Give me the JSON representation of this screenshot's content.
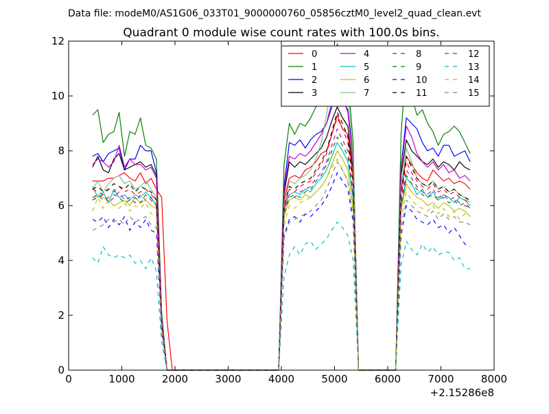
{
  "chart_data": {
    "type": "line",
    "suptitle": "Data file: modeM0/AS1G06_033T01_9000000760_05856cztM0_level2_quad_clean.evt",
    "title": "Quadrant 0 module wise count rates with 100.0s bins.",
    "xlabel": "",
    "ylabel": "",
    "x_offset_label": "+2.15286e8",
    "xlim": [
      0,
      8000
    ],
    "ylim": [
      0,
      12
    ],
    "xticks": [
      "0",
      "1000",
      "2000",
      "3000",
      "4000",
      "5000",
      "6000",
      "7000",
      "8000"
    ],
    "yticks": [
      "0",
      "2",
      "4",
      "6",
      "8",
      "10",
      "12"
    ],
    "legend_position": "top-right",
    "x": [
      450,
      550,
      650,
      750,
      850,
      950,
      1050,
      1150,
      1250,
      1350,
      1450,
      1550,
      1650,
      1750,
      1850,
      1950,
      2050,
      2150,
      2250,
      2350,
      2450,
      2550,
      2650,
      2750,
      2850,
      2950,
      3050,
      3150,
      3250,
      3350,
      3450,
      3550,
      3650,
      3750,
      3850,
      3950,
      4050,
      4150,
      4250,
      4350,
      4450,
      4550,
      4650,
      4750,
      4850,
      4950,
      5050,
      5150,
      5250,
      5350,
      5450,
      5550,
      5650,
      5750,
      5850,
      5950,
      6050,
      6150,
      6250,
      6350,
      6450,
      6550,
      6650,
      6750,
      6850,
      6950,
      7050,
      7150,
      7250,
      7350,
      7450,
      7550
    ],
    "series": [
      {
        "name": "0",
        "color": "#ff0000",
        "dash": "solid",
        "values": [
          6.9,
          6.9,
          6.9,
          7.0,
          7.0,
          7.1,
          7.2,
          7.0,
          6.9,
          7.2,
          6.8,
          7.0,
          6.6,
          6.3,
          1.8,
          0,
          0,
          0,
          0,
          0,
          0,
          0,
          0,
          0,
          0,
          0,
          0,
          0,
          0,
          0,
          0,
          0,
          0,
          0,
          0,
          0,
          6.2,
          7.0,
          7.1,
          7.0,
          7.3,
          7.4,
          7.6,
          7.9,
          8.0,
          8.6,
          9.3,
          8.8,
          8.6,
          7.0,
          0,
          0,
          0,
          0,
          0,
          0,
          0,
          0,
          6.5,
          7.8,
          7.5,
          7.2,
          7.0,
          6.9,
          7.3,
          7.1,
          6.9,
          7.0,
          6.8,
          6.9,
          6.8,
          6.6
        ]
      },
      {
        "name": "1",
        "color": "#008000",
        "dash": "solid",
        "values": [
          9.3,
          9.5,
          8.3,
          8.6,
          8.7,
          9.4,
          7.8,
          8.7,
          8.6,
          9.2,
          8.2,
          8.1,
          7.7,
          2.1,
          0,
          0,
          0,
          0,
          0,
          0,
          0,
          0,
          0,
          0,
          0,
          0,
          0,
          0,
          0,
          0,
          0,
          0,
          0,
          0,
          0,
          0,
          7.5,
          9.0,
          8.6,
          9.0,
          8.9,
          9.2,
          9.6,
          9.8,
          10.2,
          11.0,
          11.9,
          11.3,
          10.7,
          8.3,
          0,
          0,
          0,
          0,
          0,
          0,
          0,
          0,
          8.6,
          11.2,
          10.0,
          9.3,
          9.5,
          9.0,
          8.7,
          8.2,
          8.6,
          8.7,
          8.9,
          8.7,
          8.3,
          7.9
        ]
      },
      {
        "name": "2",
        "color": "#0000ff",
        "dash": "solid",
        "values": [
          7.8,
          7.9,
          7.6,
          7.9,
          8.0,
          8.1,
          7.3,
          7.7,
          7.7,
          8.2,
          8.0,
          8.0,
          7.2,
          1.9,
          0,
          0,
          0,
          0,
          0,
          0,
          0,
          0,
          0,
          0,
          0,
          0,
          0,
          0,
          0,
          0,
          0,
          0,
          0,
          0,
          0,
          0,
          6.7,
          8.3,
          8.2,
          8.4,
          8.1,
          8.4,
          8.6,
          8.7,
          9.0,
          9.6,
          10.1,
          9.8,
          9.5,
          7.8,
          0,
          0,
          0,
          0,
          0,
          0,
          0,
          0,
          7.4,
          9.2,
          9.0,
          8.8,
          8.3,
          8.0,
          8.1,
          7.8,
          8.2,
          8.2,
          7.8,
          7.9,
          8.0,
          7.6
        ]
      },
      {
        "name": "3",
        "color": "#000000",
        "dash": "solid",
        "values": [
          7.4,
          7.8,
          7.3,
          7.2,
          7.7,
          7.9,
          7.3,
          7.4,
          7.5,
          7.6,
          7.4,
          7.5,
          7.1,
          1.9,
          0,
          0,
          0,
          0,
          0,
          0,
          0,
          0,
          0,
          0,
          0,
          0,
          0,
          0,
          0,
          0,
          0,
          0,
          0,
          0,
          0,
          0,
          6.4,
          7.6,
          7.4,
          7.6,
          7.5,
          7.7,
          7.9,
          8.1,
          8.5,
          9.1,
          9.6,
          9.2,
          8.9,
          7.3,
          0,
          0,
          0,
          0,
          0,
          0,
          0,
          0,
          7.1,
          8.4,
          8.0,
          7.8,
          7.6,
          7.5,
          7.7,
          7.4,
          7.6,
          7.5,
          7.3,
          7.6,
          7.4,
          7.3
        ]
      },
      {
        "name": "4",
        "color": "#bf00bf",
        "dash": "solid",
        "values": [
          7.5,
          7.7,
          7.6,
          7.4,
          7.6,
          8.2,
          7.4,
          7.7,
          7.5,
          7.5,
          7.3,
          7.4,
          7.0,
          1.9,
          0,
          0,
          0,
          0,
          0,
          0,
          0,
          0,
          0,
          0,
          0,
          0,
          0,
          0,
          0,
          0,
          0,
          0,
          0,
          0,
          0,
          0,
          6.6,
          7.8,
          7.7,
          7.9,
          7.8,
          8.0,
          8.3,
          8.6,
          9.0,
          9.8,
          10.5,
          10.0,
          9.4,
          7.6,
          0,
          0,
          0,
          0,
          0,
          0,
          0,
          0,
          7.3,
          8.9,
          8.5,
          7.9,
          7.6,
          7.4,
          7.6,
          7.3,
          7.5,
          7.2,
          7.3,
          7.0,
          7.1,
          6.9
        ]
      },
      {
        "name": "5",
        "color": "#00bfbf",
        "dash": "solid",
        "values": [
          6.7,
          6.3,
          6.5,
          6.1,
          6.6,
          6.3,
          6.4,
          6.2,
          6.4,
          6.3,
          6.5,
          6.3,
          6.0,
          1.7,
          0,
          0,
          0,
          0,
          0,
          0,
          0,
          0,
          0,
          0,
          0,
          0,
          0,
          0,
          0,
          0,
          0,
          0,
          0,
          0,
          0,
          0,
          5.8,
          6.4,
          6.5,
          6.4,
          6.6,
          6.5,
          6.8,
          7.0,
          7.3,
          7.8,
          8.3,
          8.0,
          7.6,
          6.3,
          0,
          0,
          0,
          0,
          0,
          0,
          0,
          0,
          5.9,
          7.0,
          6.8,
          6.4,
          6.6,
          6.3,
          6.5,
          6.2,
          6.4,
          6.3,
          6.1,
          6.3,
          6.2,
          6.0
        ]
      },
      {
        "name": "6",
        "color": "#bfbf00",
        "dash": "solid",
        "values": [
          6.2,
          6.4,
          6.3,
          6.2,
          6.0,
          6.1,
          6.2,
          6.0,
          6.3,
          6.1,
          6.2,
          6.0,
          5.9,
          1.6,
          0,
          0,
          0,
          0,
          0,
          0,
          0,
          0,
          0,
          0,
          0,
          0,
          0,
          0,
          0,
          0,
          0,
          0,
          0,
          0,
          0,
          0,
          5.6,
          6.2,
          6.3,
          6.2,
          6.4,
          6.3,
          6.5,
          6.7,
          7.0,
          7.5,
          8.0,
          7.7,
          7.3,
          6.0,
          0,
          0,
          0,
          0,
          0,
          0,
          0,
          0,
          5.8,
          6.8,
          6.5,
          6.3,
          6.2,
          6.0,
          6.1,
          5.9,
          6.1,
          6.0,
          5.8,
          5.9,
          5.8,
          5.6
        ]
      },
      {
        "name": "7",
        "color": "#7fbf7f",
        "dash": "solid",
        "values": [
          6.6,
          6.9,
          6.5,
          6.8,
          7.0,
          7.1,
          6.8,
          6.9,
          6.6,
          6.7,
          6.9,
          6.6,
          6.3,
          1.8,
          0,
          0,
          0,
          0,
          0,
          0,
          0,
          0,
          0,
          0,
          0,
          0,
          0,
          0,
          0,
          0,
          0,
          0,
          0,
          0,
          0,
          0,
          6.0,
          6.9,
          6.8,
          7.0,
          7.1,
          7.3,
          7.7,
          8.3,
          9.3,
          10.6,
          11.8,
          11.0,
          10.2,
          7.8,
          0,
          0,
          0,
          0,
          0,
          0,
          0,
          0,
          6.7,
          8.1,
          7.6,
          7.0,
          6.8,
          6.7,
          6.9,
          6.6,
          6.7,
          6.5,
          6.6,
          6.4,
          6.3,
          6.1
        ]
      },
      {
        "name": "8",
        "color": "#ff0000",
        "dash": "dashed",
        "values": [
          6.6,
          6.5,
          6.4,
          6.6,
          6.5,
          6.7,
          6.5,
          6.6,
          6.4,
          6.5,
          6.6,
          6.4,
          6.2,
          1.7,
          0,
          0,
          0,
          0,
          0,
          0,
          0,
          0,
          0,
          0,
          0,
          0,
          0,
          0,
          0,
          0,
          0,
          0,
          0,
          0,
          0,
          0,
          5.9,
          6.6,
          6.5,
          6.7,
          6.8,
          6.9,
          7.2,
          7.5,
          7.9,
          8.6,
          9.2,
          8.8,
          8.3,
          6.8,
          0,
          0,
          0,
          0,
          0,
          0,
          0,
          0,
          6.3,
          7.6,
          7.2,
          6.9,
          6.7,
          6.6,
          6.8,
          6.5,
          6.6,
          6.4,
          6.5,
          6.3,
          6.2,
          6.1
        ]
      },
      {
        "name": "9",
        "color": "#008000",
        "dash": "dashed",
        "values": [
          6.3,
          6.4,
          6.2,
          6.3,
          6.4,
          6.3,
          6.1,
          6.2,
          6.3,
          6.1,
          6.4,
          6.2,
          6.0,
          1.6,
          0,
          0,
          0,
          0,
          0,
          0,
          0,
          0,
          0,
          0,
          0,
          0,
          0,
          0,
          0,
          0,
          0,
          0,
          0,
          0,
          0,
          0,
          5.7,
          6.3,
          6.4,
          6.3,
          6.5,
          6.6,
          6.9,
          7.1,
          7.5,
          8.0,
          8.5,
          8.2,
          7.8,
          6.4,
          0,
          0,
          0,
          0,
          0,
          0,
          0,
          0,
          6.0,
          7.1,
          6.8,
          6.6,
          6.4,
          6.3,
          6.4,
          6.2,
          6.3,
          6.1,
          6.2,
          6.0,
          6.1,
          5.9
        ]
      },
      {
        "name": "10",
        "color": "#0000ff",
        "dash": "dashed",
        "values": [
          5.5,
          5.4,
          5.6,
          5.2,
          5.5,
          5.3,
          5.6,
          5.1,
          5.4,
          5.2,
          5.5,
          5.1,
          5.0,
          1.4,
          0,
          0,
          0,
          0,
          0,
          0,
          0,
          0,
          0,
          0,
          0,
          0,
          0,
          0,
          0,
          0,
          0,
          0,
          0,
          0,
          0,
          0,
          4.9,
          5.5,
          5.6,
          5.4,
          5.7,
          5.6,
          5.8,
          6.0,
          6.3,
          6.7,
          7.2,
          6.9,
          6.6,
          5.4,
          0,
          0,
          0,
          0,
          0,
          0,
          0,
          0,
          4.9,
          6.0,
          5.8,
          5.5,
          5.4,
          5.3,
          5.5,
          5.2,
          5.3,
          5.0,
          5.2,
          4.9,
          4.6,
          4.5
        ]
      },
      {
        "name": "11",
        "color": "#000000",
        "dash": "dashed",
        "values": [
          6.6,
          6.7,
          6.5,
          6.6,
          6.8,
          6.7,
          6.6,
          6.8,
          6.5,
          6.7,
          6.6,
          6.5,
          6.2,
          1.7,
          0,
          0,
          0,
          0,
          0,
          0,
          0,
          0,
          0,
          0,
          0,
          0,
          0,
          0,
          0,
          0,
          0,
          0,
          0,
          0,
          0,
          0,
          5.9,
          6.7,
          6.6,
          6.8,
          6.9,
          7.0,
          7.3,
          7.6,
          8.0,
          8.7,
          9.4,
          9.0,
          8.5,
          6.9,
          0,
          0,
          0,
          0,
          0,
          0,
          0,
          0,
          6.4,
          7.8,
          7.4,
          7.0,
          6.8,
          6.7,
          6.9,
          6.6,
          6.7,
          6.5,
          6.6,
          6.4,
          6.3,
          6.2
        ]
      },
      {
        "name": "12",
        "color": "#bf00bf",
        "dash": "dashed",
        "values": [
          6.2,
          6.3,
          6.4,
          6.1,
          6.3,
          6.5,
          6.2,
          6.3,
          6.1,
          6.4,
          6.2,
          6.3,
          6.0,
          1.6,
          0,
          0,
          0,
          0,
          0,
          0,
          0,
          0,
          0,
          0,
          0,
          0,
          0,
          0,
          0,
          0,
          0,
          0,
          0,
          0,
          0,
          0,
          5.8,
          6.4,
          6.3,
          6.5,
          6.6,
          6.7,
          7.0,
          7.2,
          7.6,
          8.2,
          8.8,
          8.4,
          8.0,
          6.5,
          0,
          0,
          0,
          0,
          0,
          0,
          0,
          0,
          6.1,
          7.3,
          7.0,
          6.7,
          6.5,
          6.4,
          6.6,
          6.3,
          6.4,
          6.2,
          6.3,
          6.1,
          6.0,
          5.9
        ]
      },
      {
        "name": "13",
        "color": "#00bfbf",
        "dash": "dashed",
        "values": [
          4.1,
          3.9,
          4.5,
          4.2,
          4.1,
          4.2,
          4.1,
          4.2,
          3.9,
          4.0,
          3.7,
          4.1,
          3.6,
          1.0,
          0,
          0,
          0,
          0,
          0,
          0,
          0,
          0,
          0,
          0,
          0,
          0,
          0,
          0,
          0,
          0,
          0,
          0,
          0,
          0,
          0,
          0,
          3.4,
          4.2,
          4.5,
          4.2,
          4.6,
          4.7,
          4.4,
          4.6,
          4.8,
          5.1,
          5.4,
          5.2,
          4.9,
          4.0,
          0,
          0,
          0,
          0,
          0,
          0,
          0,
          0,
          3.8,
          4.7,
          4.4,
          4.2,
          4.6,
          4.3,
          4.5,
          4.2,
          4.3,
          4.3,
          4.0,
          4.1,
          3.7,
          3.7
        ]
      },
      {
        "name": "14",
        "color": "#bfbf00",
        "dash": "dashed",
        "values": [
          5.8,
          6.3,
          5.9,
          6.2,
          6.0,
          5.9,
          6.1,
          5.8,
          6.0,
          5.9,
          6.1,
          5.7,
          5.6,
          1.5,
          0,
          0,
          0,
          0,
          0,
          0,
          0,
          0,
          0,
          0,
          0,
          0,
          0,
          0,
          0,
          0,
          0,
          0,
          0,
          0,
          0,
          0,
          5.3,
          6.0,
          5.9,
          6.1,
          6.2,
          6.3,
          6.5,
          6.7,
          7.0,
          7.4,
          7.7,
          7.3,
          6.9,
          5.8,
          0,
          0,
          0,
          0,
          0,
          0,
          0,
          0,
          5.5,
          6.5,
          6.2,
          6.0,
          5.9,
          5.8,
          6.0,
          5.7,
          5.9,
          5.6,
          5.8,
          5.5,
          5.7,
          5.6
        ]
      },
      {
        "name": "15",
        "color": "#808080",
        "dash": "dashed",
        "values": [
          5.1,
          5.2,
          5.3,
          5.5,
          5.4,
          5.5,
          5.3,
          5.6,
          5.4,
          5.5,
          5.6,
          5.3,
          5.2,
          1.4,
          0,
          0,
          0,
          0,
          0,
          0,
          0,
          0,
          0,
          0,
          0,
          0,
          0,
          0,
          0,
          0,
          0,
          0,
          0,
          0,
          0,
          0,
          4.8,
          5.4,
          5.5,
          5.6,
          5.7,
          5.8,
          6.0,
          6.2,
          6.6,
          7.1,
          7.6,
          7.3,
          6.9,
          5.6,
          0,
          0,
          0,
          0,
          0,
          0,
          0,
          0,
          5.2,
          6.2,
          6.0,
          5.8,
          5.7,
          5.6,
          5.8,
          5.5,
          5.7,
          5.5,
          5.6,
          5.4,
          5.4,
          5.3
        ]
      }
    ]
  }
}
